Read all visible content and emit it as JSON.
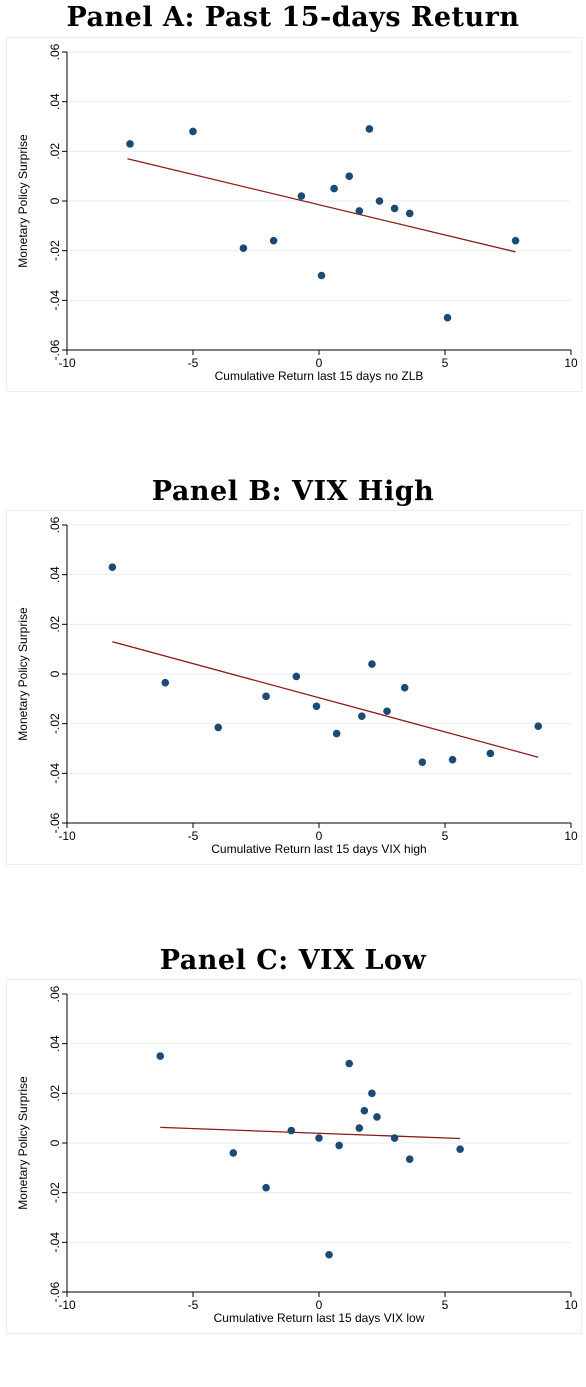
{
  "chart_data": [
    {
      "type": "scatter",
      "title": "Panel A: Past 15-days Return",
      "xlabel": "Cumulative Return last 15 days no ZLB",
      "ylabel": "Monetary Policy Surprise",
      "xlim": [
        -10,
        10
      ],
      "ylim": [
        -0.06,
        0.06
      ],
      "xticks": [
        "-10",
        "-5",
        "0",
        "5",
        "10"
      ],
      "yticks": [
        "-.06",
        "-.04",
        "-.02",
        "0",
        ".02",
        ".04",
        ".06"
      ],
      "grid": true,
      "points": [
        {
          "x": -7.5,
          "y": 0.023
        },
        {
          "x": -5.0,
          "y": 0.028
        },
        {
          "x": -3.0,
          "y": -0.019
        },
        {
          "x": -1.8,
          "y": -0.016
        },
        {
          "x": -0.7,
          "y": 0.002
        },
        {
          "x": 0.1,
          "y": -0.03
        },
        {
          "x": 0.6,
          "y": 0.005
        },
        {
          "x": 1.2,
          "y": 0.01
        },
        {
          "x": 1.6,
          "y": -0.004
        },
        {
          "x": 2.0,
          "y": 0.029
        },
        {
          "x": 2.4,
          "y": 0.0
        },
        {
          "x": 3.0,
          "y": -0.003
        },
        {
          "x": 3.6,
          "y": -0.005
        },
        {
          "x": 5.1,
          "y": -0.047
        },
        {
          "x": 7.8,
          "y": -0.016
        }
      ],
      "fit_line": {
        "x": [
          -7.6,
          7.8
        ],
        "y": [
          0.017,
          -0.0205
        ]
      }
    },
    {
      "type": "scatter",
      "title": "Panel B: VIX High",
      "xlabel": "Cumulative Return last 15 days VIX high",
      "ylabel": "Monetary Policy Surprise",
      "xlim": [
        -10,
        10
      ],
      "ylim": [
        -0.06,
        0.06
      ],
      "xticks": [
        "-10",
        "-5",
        "0",
        "5",
        "10"
      ],
      "yticks": [
        "-.06",
        "-.04",
        "-.02",
        "0",
        ".02",
        ".04",
        ".06"
      ],
      "grid": true,
      "points": [
        {
          "x": -8.2,
          "y": 0.043
        },
        {
          "x": -6.1,
          "y": -0.0035
        },
        {
          "x": -4.0,
          "y": -0.0215
        },
        {
          "x": -2.1,
          "y": -0.009
        },
        {
          "x": -0.9,
          "y": -0.001
        },
        {
          "x": -0.1,
          "y": -0.013
        },
        {
          "x": 0.7,
          "y": -0.024
        },
        {
          "x": 1.7,
          "y": -0.017
        },
        {
          "x": 2.1,
          "y": 0.004
        },
        {
          "x": 2.7,
          "y": -0.015
        },
        {
          "x": 3.4,
          "y": -0.0055
        },
        {
          "x": 4.1,
          "y": -0.0355
        },
        {
          "x": 5.3,
          "y": -0.0345
        },
        {
          "x": 6.8,
          "y": -0.032
        },
        {
          "x": 8.7,
          "y": -0.021
        }
      ],
      "fit_line": {
        "x": [
          -8.2,
          8.7
        ],
        "y": [
          0.013,
          -0.0335
        ]
      }
    },
    {
      "type": "scatter",
      "title": "Panel C: VIX Low",
      "xlabel": "Cumulative Return last 15 days VIX low",
      "ylabel": "Monetary Policy Surprise",
      "xlim": [
        -10,
        10
      ],
      "ylim": [
        -0.06,
        0.06
      ],
      "xticks": [
        "-10",
        "-5",
        "0",
        "5",
        "10"
      ],
      "yticks": [
        "-.06",
        "-.04",
        "-.02",
        "0",
        ".02",
        ".04",
        ".06"
      ],
      "grid": true,
      "points": [
        {
          "x": -6.3,
          "y": 0.035
        },
        {
          "x": -3.4,
          "y": -0.004
        },
        {
          "x": -2.1,
          "y": -0.018
        },
        {
          "x": -1.1,
          "y": 0.005
        },
        {
          "x": 0.0,
          "y": 0.002
        },
        {
          "x": 0.4,
          "y": -0.045
        },
        {
          "x": 0.8,
          "y": -0.001
        },
        {
          "x": 1.2,
          "y": 0.032
        },
        {
          "x": 1.6,
          "y": 0.006
        },
        {
          "x": 1.8,
          "y": 0.013
        },
        {
          "x": 2.1,
          "y": 0.02
        },
        {
          "x": 2.3,
          "y": 0.0105
        },
        {
          "x": 3.0,
          "y": 0.002
        },
        {
          "x": 3.6,
          "y": -0.0065
        },
        {
          "x": 5.6,
          "y": -0.0025
        }
      ],
      "fit_line": {
        "x": [
          -6.3,
          5.6
        ],
        "y": [
          0.0063,
          0.0018
        ]
      }
    }
  ],
  "colors": {
    "marker": "#1b4a74",
    "fit_line": "#8b1a1a",
    "grid": "#e6edf3",
    "axis": "#000000"
  }
}
